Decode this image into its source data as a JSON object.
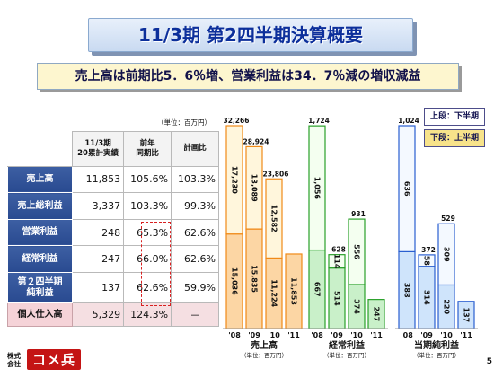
{
  "title": "11/3期 第2四半期決算概要",
  "subtitle": "売上高は前期比5．6％増、営業利益は34．7％減の増収減益",
  "table": {
    "unit_note": "（単位：百万円）",
    "headers": [
      "11/3期\n20累計実績",
      "前年\n同期比",
      "計画比"
    ],
    "rows": [
      {
        "label": "売上高",
        "values": [
          "11,853",
          "105.6%",
          "103.3%"
        ]
      },
      {
        "label": "売上総利益",
        "values": [
          "3,337",
          "103.3%",
          "99.3%"
        ]
      },
      {
        "label": "営業利益",
        "values": [
          "248",
          "65.3%",
          "62.6%"
        ]
      },
      {
        "label": "経常利益",
        "values": [
          "247",
          "66.0%",
          "62.6%"
        ]
      },
      {
        "label": "第２四半期\n純利益",
        "values": [
          "137",
          "62.6%",
          "59.9%"
        ]
      },
      {
        "label": "個人仕入高",
        "values": [
          "5,329",
          "124.3%",
          "－"
        ]
      }
    ]
  },
  "legend": {
    "upper": "上段：下半期",
    "lower": "下段：上半期"
  },
  "chart_data": [
    {
      "type": "bar",
      "title": "売上高",
      "unit": "（単位：百万円）",
      "categories": [
        "'08",
        "'09",
        "'10",
        "'11"
      ],
      "series": [
        {
          "name": "上半期",
          "values": [
            15036,
            15835,
            11224,
            11853
          ]
        },
        {
          "name": "下半期",
          "values": [
            17230,
            13089,
            12582,
            null
          ]
        }
      ],
      "totals": [
        "32,266",
        "28,924",
        "23,806",
        null
      ],
      "lower_labels": [
        "15,036",
        "15,835",
        "11,224",
        "11,853"
      ],
      "upper_labels": [
        "17,230",
        "13,089",
        "12,582",
        null
      ],
      "ylim": [
        0,
        32266
      ],
      "colors": {
        "lower": "#fcd6a4",
        "upper": "#fff6dc",
        "edge": "#f08a18"
      }
    },
    {
      "type": "bar",
      "title": "経常利益",
      "unit": "（単位：百万円）",
      "categories": [
        "'08",
        "'09",
        "'10",
        "'11"
      ],
      "series": [
        {
          "name": "上半期",
          "values": [
            667,
            514,
            374,
            247
          ]
        },
        {
          "name": "下半期",
          "values": [
            1056,
            114,
            556,
            null
          ]
        }
      ],
      "totals": [
        "1,724",
        "628",
        "931",
        null
      ],
      "lower_labels": [
        "667",
        "514",
        "374",
        "247"
      ],
      "upper_labels": [
        "1,056",
        "114",
        "556",
        null
      ],
      "ylim": [
        0,
        1724
      ],
      "colors": {
        "lower": "#c9f0c9",
        "upper": "#f4fff0",
        "edge": "#2aa02a"
      }
    },
    {
      "type": "bar",
      "title": "当期純利益",
      "unit": "（単位：百万円）",
      "categories": [
        "'08",
        "'09",
        "'10",
        "'11"
      ],
      "series": [
        {
          "name": "上半期",
          "values": [
            388,
            314,
            220,
            137
          ]
        },
        {
          "name": "下半期",
          "values": [
            636,
            58,
            309,
            null
          ]
        }
      ],
      "totals": [
        "1,024",
        "372",
        "529",
        null
      ],
      "lower_labels": [
        "388",
        "314",
        "220",
        "137"
      ],
      "upper_labels": [
        "636",
        "58",
        "309",
        null
      ],
      "ylim": [
        0,
        1024
      ],
      "colors": {
        "lower": "#cfe4fb",
        "upper": "#f4f9ff",
        "edge": "#2a5fd0"
      }
    }
  ],
  "footer": {
    "company_small": "株式\n会社",
    "brand": "コメ兵",
    "page": "5"
  }
}
